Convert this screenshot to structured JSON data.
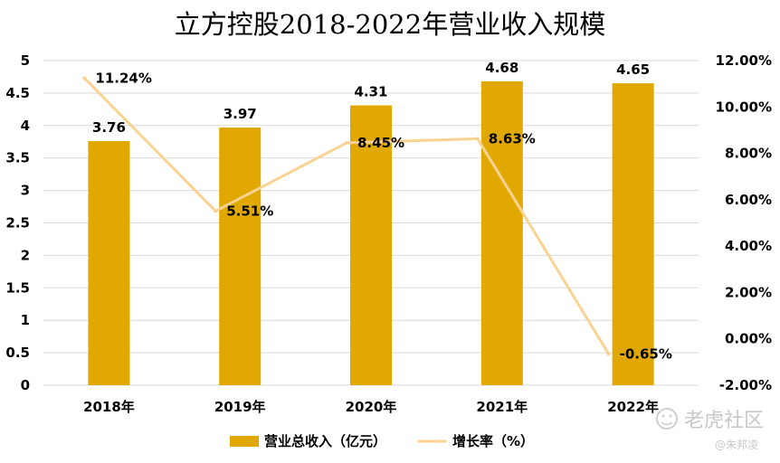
{
  "chart_data": {
    "type": "bar",
    "title": "立方控股2018-2022年营业收入规模",
    "categories": [
      "2018年",
      "2019年",
      "2020年",
      "2021年",
      "2022年"
    ],
    "series": [
      {
        "name": "营业总收入（亿元）",
        "type": "bar",
        "axis": "left",
        "values": [
          3.76,
          3.97,
          4.31,
          4.68,
          4.65
        ],
        "labels": [
          "3.76",
          "3.97",
          "4.31",
          "4.68",
          "4.65"
        ],
        "color": "#E0A800"
      },
      {
        "name": "增长率（%）",
        "type": "line",
        "axis": "right",
        "values": [
          11.24,
          5.51,
          8.45,
          8.63,
          -0.65
        ],
        "labels": [
          "11.24%",
          "5.51%",
          "8.45%",
          "8.63%",
          "-0.65%"
        ],
        "color": "#FAD393"
      }
    ],
    "y_left": {
      "ylim": [
        0,
        5
      ],
      "ticks": [
        "0",
        "0.5",
        "1",
        "1.5",
        "2",
        "2.5",
        "3",
        "3.5",
        "4",
        "4.5",
        "5"
      ]
    },
    "y_right": {
      "ylim": [
        -2,
        12
      ],
      "ticks": [
        "-2.00%",
        "0.00%",
        "2.00%",
        "4.00%",
        "6.00%",
        "8.00%",
        "10.00%",
        "12.00%"
      ]
    },
    "grid": true,
    "legend": "bottom"
  },
  "watermark": {
    "brand": "老虎社区",
    "author": "@朱邦凌"
  }
}
